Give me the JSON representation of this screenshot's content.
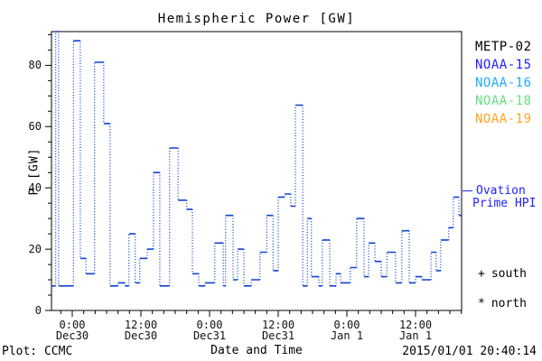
{
  "title": "Hemispheric Power [GW]",
  "legend": {
    "satellites": [
      {
        "name": "METP-02",
        "color": "#000000"
      },
      {
        "name": "NOAA-15",
        "color": "#2222ff"
      },
      {
        "name": "NOAA-16",
        "color": "#22aaff"
      },
      {
        "name": "NOAA-18",
        "color": "#63e081"
      },
      {
        "name": "NOAA-19",
        "color": "#ffa520"
      }
    ],
    "model": {
      "label_line1": "Ovation",
      "label_line2": "Prime HPI",
      "color": "#2222ff"
    },
    "markers": [
      {
        "symbol": "+",
        "label": "south"
      },
      {
        "symbol": "*",
        "label": "north"
      }
    ]
  },
  "footer": {
    "left": "Plot: CCMC",
    "timestamp": "2015/01/01 20:40:14"
  },
  "chart_data": {
    "type": "line",
    "style": "dotted-step",
    "series_name": "Ovation Prime HPI",
    "line_color": "#1144d4",
    "axis_color": "#000000",
    "title": "Hemispheric Power [GW]",
    "xlabel": "Date and Time",
    "ylabel": "P [GW]",
    "ylim": [
      0,
      91
    ],
    "y_major_ticks": [
      0,
      20,
      40,
      60,
      80
    ],
    "y_minor_step": 5,
    "x_hours_range": [
      -3.63,
      68.05
    ],
    "x_major_ticks": [
      {
        "hours": 0,
        "time": "0:00",
        "date": "Dec30"
      },
      {
        "hours": 12,
        "time": "12:00",
        "date": "Dec30"
      },
      {
        "hours": 24,
        "time": "0:00",
        "date": "Dec31"
      },
      {
        "hours": 36,
        "time": "12:00",
        "date": "Dec31"
      },
      {
        "hours": 48,
        "time": "0:00",
        "date": "Jan 1"
      },
      {
        "hours": 60,
        "time": "12:00",
        "date": "Jan 1"
      }
    ],
    "x_minor_step_hours": 2,
    "steps_hours_gw": [
      [
        -3.6,
        8
      ],
      [
        -2.9,
        91
      ],
      [
        -2.4,
        8
      ],
      [
        0.2,
        88
      ],
      [
        1.4,
        17
      ],
      [
        2.4,
        12
      ],
      [
        3.9,
        81
      ],
      [
        5.5,
        61
      ],
      [
        6.6,
        8
      ],
      [
        8.0,
        9
      ],
      [
        9.2,
        8
      ],
      [
        9.9,
        25
      ],
      [
        11.0,
        9
      ],
      [
        11.8,
        17
      ],
      [
        13.1,
        20
      ],
      [
        14.2,
        45
      ],
      [
        15.3,
        8
      ],
      [
        17.0,
        53
      ],
      [
        18.5,
        36
      ],
      [
        20.0,
        33
      ],
      [
        21.0,
        12
      ],
      [
        22.1,
        8
      ],
      [
        23.2,
        9
      ],
      [
        24.9,
        22
      ],
      [
        26.4,
        8
      ],
      [
        26.8,
        31
      ],
      [
        28.1,
        10
      ],
      [
        28.9,
        20
      ],
      [
        30.0,
        8
      ],
      [
        31.3,
        10
      ],
      [
        32.8,
        19
      ],
      [
        34.0,
        31
      ],
      [
        35.1,
        13
      ],
      [
        36.0,
        37
      ],
      [
        37.1,
        38
      ],
      [
        38.2,
        34
      ],
      [
        39.0,
        67
      ],
      [
        40.3,
        8
      ],
      [
        41.1,
        30
      ],
      [
        41.8,
        11
      ],
      [
        43.1,
        8
      ],
      [
        43.7,
        23
      ],
      [
        45.0,
        8
      ],
      [
        46.1,
        12
      ],
      [
        46.9,
        9
      ],
      [
        48.6,
        14
      ],
      [
        49.7,
        30
      ],
      [
        51.0,
        11
      ],
      [
        51.8,
        22
      ],
      [
        52.9,
        16
      ],
      [
        54.0,
        11
      ],
      [
        55.0,
        19
      ],
      [
        56.5,
        9
      ],
      [
        57.6,
        26
      ],
      [
        58.9,
        9
      ],
      [
        60.0,
        11
      ],
      [
        61.1,
        10
      ],
      [
        62.7,
        19
      ],
      [
        63.6,
        13
      ],
      [
        64.4,
        23
      ],
      [
        65.8,
        27
      ],
      [
        66.6,
        37
      ],
      [
        67.6,
        31
      ],
      [
        68.0,
        31
      ]
    ]
  }
}
